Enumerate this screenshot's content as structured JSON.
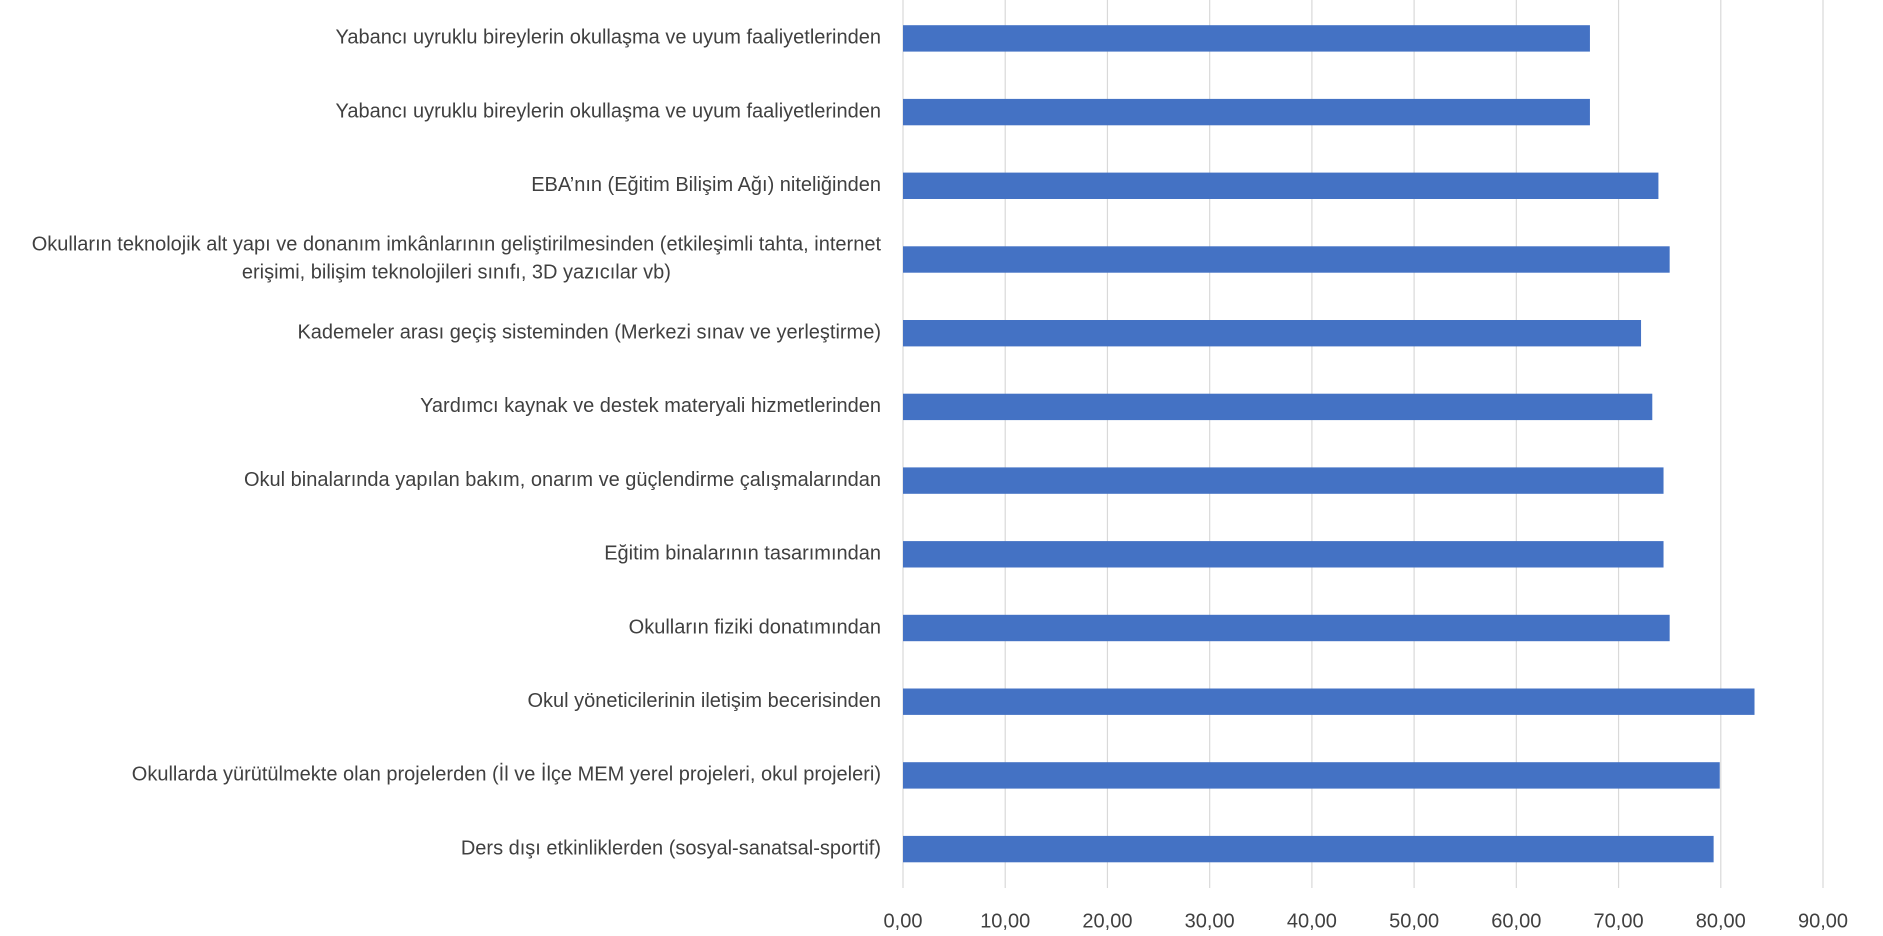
{
  "chart_data": {
    "type": "bar",
    "orientation": "horizontal",
    "categories": [
      "Yabancı uyruklu bireylerin okullaşma ve uyum faaliyetlerinden",
      "Yabancı uyruklu bireylerin okullaşma ve uyum faaliyetlerinden",
      "EBA’nın (Eğitim Bilişim Ağı) niteliğinden",
      "Okulların teknolojik alt yapı ve donanım imkânlarının geliştirilmesinden (etkileşimli tahta, internet erişimi, bilişim teknolojileri sınıfı, 3D yazıcılar vb)",
      "Kademeler arası geçiş sisteminden (Merkezi sınav ve yerleştirme)",
      "Yardımcı kaynak ve destek materyali hizmetlerinden",
      "Okul binalarında yapılan bakım, onarım ve güçlendirme çalışmalarından",
      "Eğitim binalarının tasarımından",
      "Okulların fiziki donatımından",
      "Okul yöneticilerinin iletişim becerisinden",
      "Okullarda yürütülmekte olan projelerden (İl ve İlçe MEM yerel projeleri, okul projeleri)",
      "Ders dışı etkinliklerden (sosyal-sanatsal-sportif)"
    ],
    "values": [
      67.2,
      67.2,
      73.9,
      75.0,
      72.2,
      73.3,
      74.4,
      74.4,
      75.0,
      83.3,
      79.9,
      79.3
    ],
    "color": "#4472c4",
    "xlim": [
      0,
      90
    ],
    "xticks": [
      {
        "value": 0,
        "label": "0,00"
      },
      {
        "value": 10,
        "label": "10,00"
      },
      {
        "value": 20,
        "label": "20,00"
      },
      {
        "value": 30,
        "label": "30,00"
      },
      {
        "value": 40,
        "label": "40,00"
      },
      {
        "value": 50,
        "label": "50,00"
      },
      {
        "value": 60,
        "label": "60,00"
      },
      {
        "value": 70,
        "label": "70,00"
      },
      {
        "value": 80,
        "label": "80,00"
      },
      {
        "value": 90,
        "label": "90,00"
      }
    ],
    "grid": true
  }
}
